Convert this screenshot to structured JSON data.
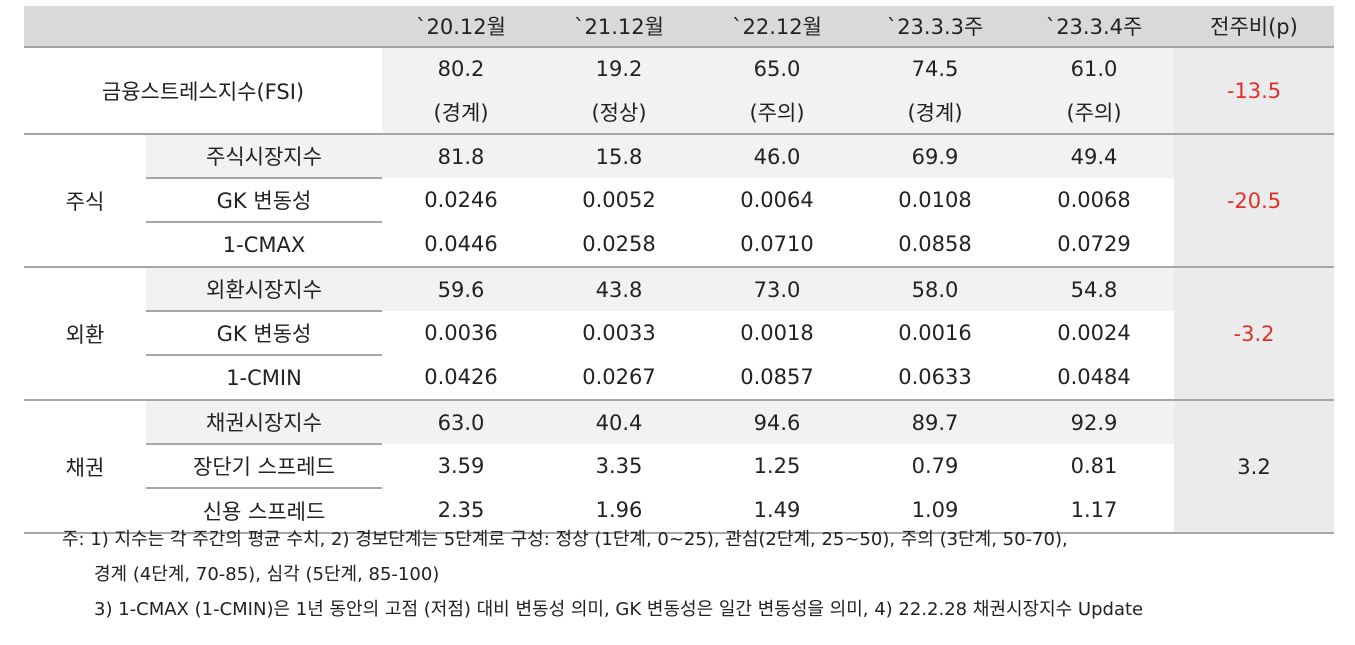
{
  "headers": [
    "",
    "",
    "`20.12월",
    "`21.12월",
    "`22.12월",
    "`23.3.3주",
    "`23.3.4주",
    "전주비(p)"
  ],
  "fsi": {
    "label": "금융스트레스지수(FSI)",
    "values": [
      "80.2",
      "19.2",
      "65.0",
      "74.5",
      "61.0"
    ],
    "levels": [
      "(경계)",
      "(정상)",
      "(주의)",
      "(경계)",
      "(주의)"
    ],
    "change": "-13.5"
  },
  "groups": [
    {
      "name": "주식",
      "change": "-20.5",
      "rows": [
        {
          "label": "주식시장지수",
          "values": [
            "81.8",
            "15.8",
            "46.0",
            "69.9",
            "49.4"
          ]
        },
        {
          "label": "GK 변동성",
          "values": [
            "0.0246",
            "0.0052",
            "0.0064",
            "0.0108",
            "0.0068"
          ]
        },
        {
          "label": "1-CMAX",
          "values": [
            "0.0446",
            "0.0258",
            "0.0710",
            "0.0858",
            "0.0729"
          ]
        }
      ]
    },
    {
      "name": "외환",
      "change": "-3.2",
      "rows": [
        {
          "label": "외환시장지수",
          "values": [
            "59.6",
            "43.8",
            "73.0",
            "58.0",
            "54.8"
          ]
        },
        {
          "label": "GK 변동성",
          "values": [
            "0.0036",
            "0.0033",
            "0.0018",
            "0.0016",
            "0.0024"
          ]
        },
        {
          "label": "1-CMIN",
          "values": [
            "0.0426",
            "0.0267",
            "0.0857",
            "0.0633",
            "0.0484"
          ]
        }
      ]
    },
    {
      "name": "채권",
      "change": "3.2",
      "rows": [
        {
          "label": "채권시장지수",
          "values": [
            "63.0",
            "40.4",
            "94.6",
            "89.7",
            "92.9"
          ]
        },
        {
          "label": "장단기 스프레드",
          "values": [
            "3.59",
            "3.35",
            "1.25",
            "0.79",
            "0.81"
          ]
        },
        {
          "label": "신용 스프레드",
          "values": [
            "2.35",
            "1.96",
            "1.49",
            "1.09",
            "1.17"
          ]
        }
      ]
    }
  ],
  "notes": [
    "주: 1) 지수는 각 주간의 평균 수치, 2) 경보단계는 5단계로 구성: 정상 (1단계, 0~25), 관심(2단계, 25~50), 주의 (3단계, 50-70),",
    "경계 (4단계, 70-85), 심각 (5단계, 85-100)",
    "3) 1-CMAX (1-CMIN)은 1년 동안의 고점 (저점) 대비 변동성 의미, GK 변동성은 일간 변동성을 의미, 4) 22.2.28 채권시장지수 Update"
  ],
  "colors": {
    "negative": "#e0302b",
    "header_bg": "#d9d9d9",
    "shade_bg": "#f2f2f2"
  }
}
